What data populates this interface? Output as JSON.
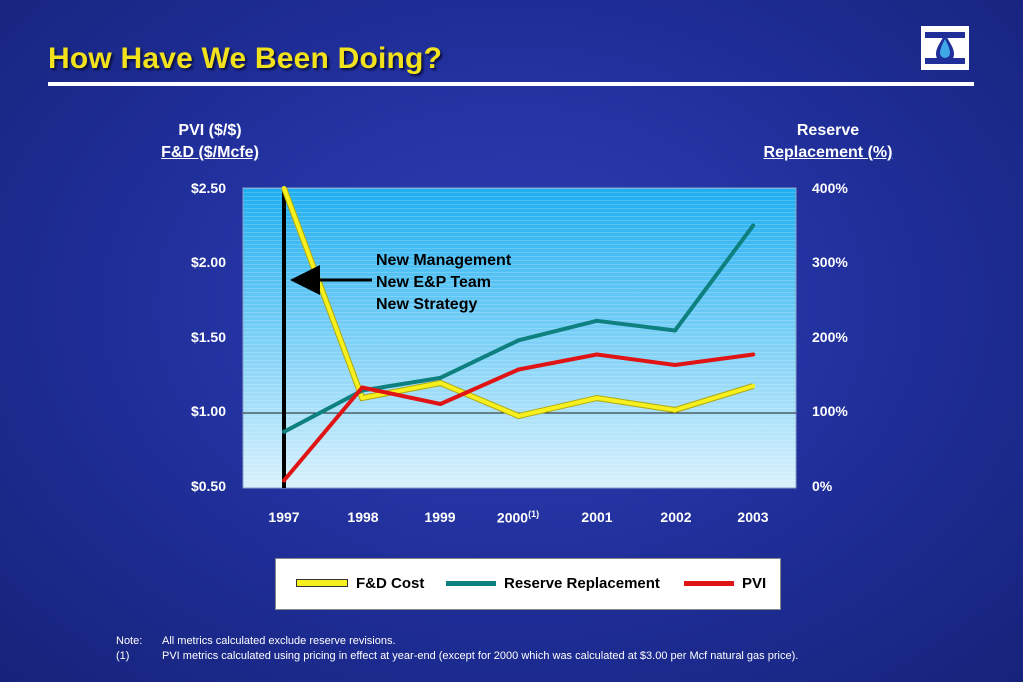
{
  "slide": {
    "title": "How Have We Been Doing?",
    "logo_icon": "water-drop-logo-icon"
  },
  "axes": {
    "left_title_line1": "PVI ($/$)",
    "left_title_line2": "F&D ($/Mcfe)",
    "right_title_line1": "Reserve",
    "right_title_line2": "Replacement (%)",
    "left_ticks": [
      "$2.50",
      "$2.00",
      "$1.50",
      "$1.00",
      "$0.50"
    ],
    "right_ticks": [
      "400%",
      "300%",
      "200%",
      "100%",
      "0%"
    ],
    "x_ticks": [
      "1997",
      "1998",
      "1999",
      "2000",
      "2001",
      "2002",
      "2003"
    ],
    "x_tick_footnote": "(1)"
  },
  "annotation": {
    "lines": [
      "New Management",
      "New E&P Team",
      "New Strategy"
    ]
  },
  "legend": {
    "fd": "F&D Cost",
    "rr": "Reserve Replacement",
    "pvi": "PVI"
  },
  "notes": {
    "note_key": "Note:",
    "note_text": "All metrics calculated exclude reserve revisions.",
    "fn_key": "(1)",
    "fn_text": "PVI metrics calculated using pricing in effect at year-end (except for 2000 which was calculated at $3.00 per Mcf natural gas price)."
  },
  "colors": {
    "fd": "#f5f01e",
    "rr": "#0e8080",
    "pvi": "#e01414",
    "title": "#f2e21c"
  },
  "chart_data": {
    "type": "line",
    "categories": [
      "1997",
      "1998",
      "1999",
      "2000",
      "2001",
      "2002",
      "2003"
    ],
    "ylim_left": [
      0.5,
      2.5
    ],
    "ylim_right": [
      0,
      400
    ],
    "reference_line": 1.0,
    "marker_year": "1997",
    "series": [
      {
        "name": "F&D Cost",
        "axis": "left",
        "values": [
          2.5,
          1.1,
          1.2,
          0.98,
          1.1,
          1.02,
          1.18
        ]
      },
      {
        "name": "Reserve Replacement",
        "axis": "right",
        "values": [
          75,
          130,
          147,
          197,
          223,
          210,
          350
        ]
      },
      {
        "name": "PVI",
        "axis": "left",
        "values": [
          0.55,
          1.17,
          1.06,
          1.29,
          1.39,
          1.32,
          1.39
        ]
      }
    ]
  }
}
